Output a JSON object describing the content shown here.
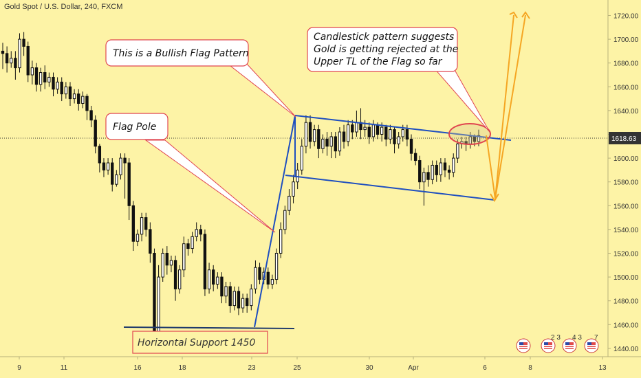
{
  "header": {
    "title": "Gold Spot / U.S. Dollar, 240, FXCM"
  },
  "chart_data": {
    "type": "candlestick",
    "title": "Gold Spot / U.S. Dollar, 240, FXCM",
    "x_tick_labels": [
      "9",
      "11",
      "16",
      "18",
      "23",
      "25",
      "30",
      "Apr",
      "6",
      "8",
      "13"
    ],
    "y_ticks": [
      1440,
      1460,
      1480,
      1500,
      1520,
      1540,
      1560,
      1580,
      1600,
      1620,
      1640,
      1660,
      1680,
      1700,
      1720
    ],
    "ylim": [
      1433,
      1733
    ],
    "grid": false,
    "current_price": 1618.63,
    "current_price_label": "1618.63",
    "candles": [
      [
        1690,
        1688,
        1675,
        1697
      ],
      [
        1688,
        1680,
        1672,
        1694
      ],
      [
        1680,
        1684,
        1676,
        1690
      ],
      [
        1684,
        1676,
        1666,
        1690
      ],
      [
        1676,
        1700,
        1672,
        1705
      ],
      [
        1700,
        1694,
        1686,
        1706
      ],
      [
        1694,
        1670,
        1664,
        1698
      ],
      [
        1670,
        1676,
        1662,
        1682
      ],
      [
        1676,
        1662,
        1656,
        1680
      ],
      [
        1662,
        1672,
        1656,
        1676
      ],
      [
        1672,
        1664,
        1658,
        1678
      ],
      [
        1664,
        1668,
        1660,
        1672
      ],
      [
        1668,
        1658,
        1652,
        1672
      ],
      [
        1658,
        1664,
        1654,
        1668
      ],
      [
        1664,
        1654,
        1648,
        1668
      ],
      [
        1654,
        1660,
        1650,
        1664
      ],
      [
        1660,
        1650,
        1644,
        1664
      ],
      [
        1650,
        1654,
        1646,
        1658
      ],
      [
        1654,
        1646,
        1640,
        1658
      ],
      [
        1646,
        1652,
        1642,
        1656
      ],
      [
        1652,
        1640,
        1632,
        1654
      ],
      [
        1640,
        1632,
        1626,
        1644
      ],
      [
        1632,
        1610,
        1604,
        1636
      ],
      [
        1610,
        1596,
        1588,
        1612
      ],
      [
        1596,
        1590,
        1584,
        1600
      ],
      [
        1590,
        1596,
        1586,
        1600
      ],
      [
        1596,
        1578,
        1572,
        1600
      ],
      [
        1578,
        1586,
        1576,
        1590
      ],
      [
        1586,
        1600,
        1582,
        1604
      ],
      [
        1600,
        1596,
        1566,
        1604
      ],
      [
        1596,
        1560,
        1548,
        1600
      ],
      [
        1560,
        1530,
        1522,
        1564
      ],
      [
        1530,
        1536,
        1526,
        1540
      ],
      [
        1536,
        1550,
        1530,
        1554
      ],
      [
        1550,
        1540,
        1534,
        1554
      ],
      [
        1540,
        1520,
        1512,
        1546
      ],
      [
        1520,
        1454,
        1450,
        1524
      ],
      [
        1454,
        1500,
        1450,
        1510
      ],
      [
        1500,
        1520,
        1496,
        1524
      ],
      [
        1520,
        1510,
        1502,
        1526
      ],
      [
        1510,
        1514,
        1504,
        1518
      ],
      [
        1514,
        1490,
        1480,
        1518
      ],
      [
        1490,
        1506,
        1486,
        1510
      ],
      [
        1506,
        1528,
        1500,
        1534
      ],
      [
        1528,
        1524,
        1518,
        1532
      ],
      [
        1524,
        1534,
        1520,
        1538
      ],
      [
        1534,
        1540,
        1530,
        1546
      ],
      [
        1540,
        1536,
        1530,
        1544
      ],
      [
        1536,
        1490,
        1484,
        1540
      ],
      [
        1490,
        1506,
        1486,
        1512
      ],
      [
        1506,
        1494,
        1488,
        1510
      ],
      [
        1494,
        1500,
        1490,
        1504
      ],
      [
        1500,
        1484,
        1478,
        1504
      ],
      [
        1484,
        1492,
        1478,
        1496
      ],
      [
        1492,
        1476,
        1470,
        1496
      ],
      [
        1476,
        1488,
        1472,
        1492
      ],
      [
        1488,
        1474,
        1468,
        1492
      ],
      [
        1474,
        1482,
        1470,
        1486
      ],
      [
        1482,
        1476,
        1470,
        1486
      ],
      [
        1476,
        1490,
        1472,
        1494
      ],
      [
        1490,
        1508,
        1486,
        1514
      ],
      [
        1508,
        1498,
        1494,
        1512
      ],
      [
        1498,
        1504,
        1494,
        1508
      ],
      [
        1504,
        1494,
        1490,
        1508
      ],
      [
        1494,
        1498,
        1490,
        1502
      ],
      [
        1498,
        1520,
        1494,
        1524
      ],
      [
        1520,
        1540,
        1516,
        1546
      ],
      [
        1540,
        1556,
        1536,
        1560
      ],
      [
        1556,
        1568,
        1552,
        1574
      ],
      [
        1568,
        1580,
        1562,
        1586
      ],
      [
        1580,
        1590,
        1574,
        1596
      ],
      [
        1590,
        1610,
        1586,
        1616
      ],
      [
        1610,
        1630,
        1604,
        1636
      ],
      [
        1630,
        1614,
        1608,
        1636
      ],
      [
        1614,
        1624,
        1610,
        1628
      ],
      [
        1624,
        1608,
        1600,
        1628
      ],
      [
        1608,
        1616,
        1604,
        1620
      ],
      [
        1616,
        1610,
        1602,
        1622
      ],
      [
        1610,
        1618,
        1600,
        1622
      ],
      [
        1618,
        1606,
        1600,
        1622
      ],
      [
        1606,
        1622,
        1602,
        1626
      ],
      [
        1622,
        1614,
        1608,
        1628
      ],
      [
        1614,
        1628,
        1610,
        1632
      ],
      [
        1628,
        1622,
        1616,
        1632
      ],
      [
        1622,
        1630,
        1618,
        1640
      ],
      [
        1630,
        1624,
        1616,
        1642
      ],
      [
        1624,
        1626,
        1618,
        1632
      ],
      [
        1626,
        1618,
        1612,
        1630
      ],
      [
        1618,
        1628,
        1614,
        1632
      ],
      [
        1628,
        1620,
        1616,
        1630
      ],
      [
        1620,
        1626,
        1614,
        1630
      ],
      [
        1626,
        1616,
        1610,
        1628
      ],
      [
        1616,
        1624,
        1612,
        1628
      ],
      [
        1624,
        1612,
        1604,
        1626
      ],
      [
        1612,
        1618,
        1608,
        1622
      ],
      [
        1618,
        1624,
        1614,
        1628
      ],
      [
        1624,
        1616,
        1610,
        1628
      ],
      [
        1616,
        1604,
        1598,
        1620
      ],
      [
        1604,
        1598,
        1594,
        1608
      ],
      [
        1598,
        1580,
        1574,
        1602
      ],
      [
        1580,
        1588,
        1560,
        1592
      ],
      [
        1588,
        1582,
        1576,
        1594
      ],
      [
        1582,
        1594,
        1578,
        1598
      ],
      [
        1594,
        1586,
        1580,
        1598
      ],
      [
        1586,
        1596,
        1580,
        1600
      ],
      [
        1596,
        1590,
        1584,
        1600
      ],
      [
        1590,
        1588,
        1582,
        1594
      ],
      [
        1588,
        1600,
        1584,
        1604
      ],
      [
        1600,
        1612,
        1596,
        1616
      ],
      [
        1612,
        1614,
        1608,
        1618
      ],
      [
        1614,
        1612,
        1606,
        1618
      ],
      [
        1612,
        1618,
        1608,
        1622
      ],
      [
        1618,
        1614,
        1610,
        1620
      ],
      [
        1614,
        1619,
        1610,
        1624
      ]
    ]
  },
  "annotations": {
    "bullish_flag": "This is a Bullish Flag Pattern",
    "flag_pole": "Flag Pole",
    "candlestick_line1": "Candlestick pattern suggests",
    "candlestick_line2": "Gold is getting rejected at the",
    "candlestick_line3": "Upper TL of the Flag so far",
    "horizontal_support": "Horizontal Support 1450"
  },
  "event_badges": [
    {
      "icon": "us-flag-icon",
      "count": ""
    },
    {
      "icon": "us-flag-icon",
      "count": "2 3"
    },
    {
      "icon": "us-flag-icon",
      "count": "4 3"
    },
    {
      "icon": "us-flag-icon",
      "count": "7"
    }
  ],
  "colors": {
    "background": "#fdf3a6",
    "candle": "#111111",
    "trendline": "#1f4fbf",
    "callout_border": "#e0454f",
    "projection": "#f5a623",
    "price_label": "#333333"
  }
}
